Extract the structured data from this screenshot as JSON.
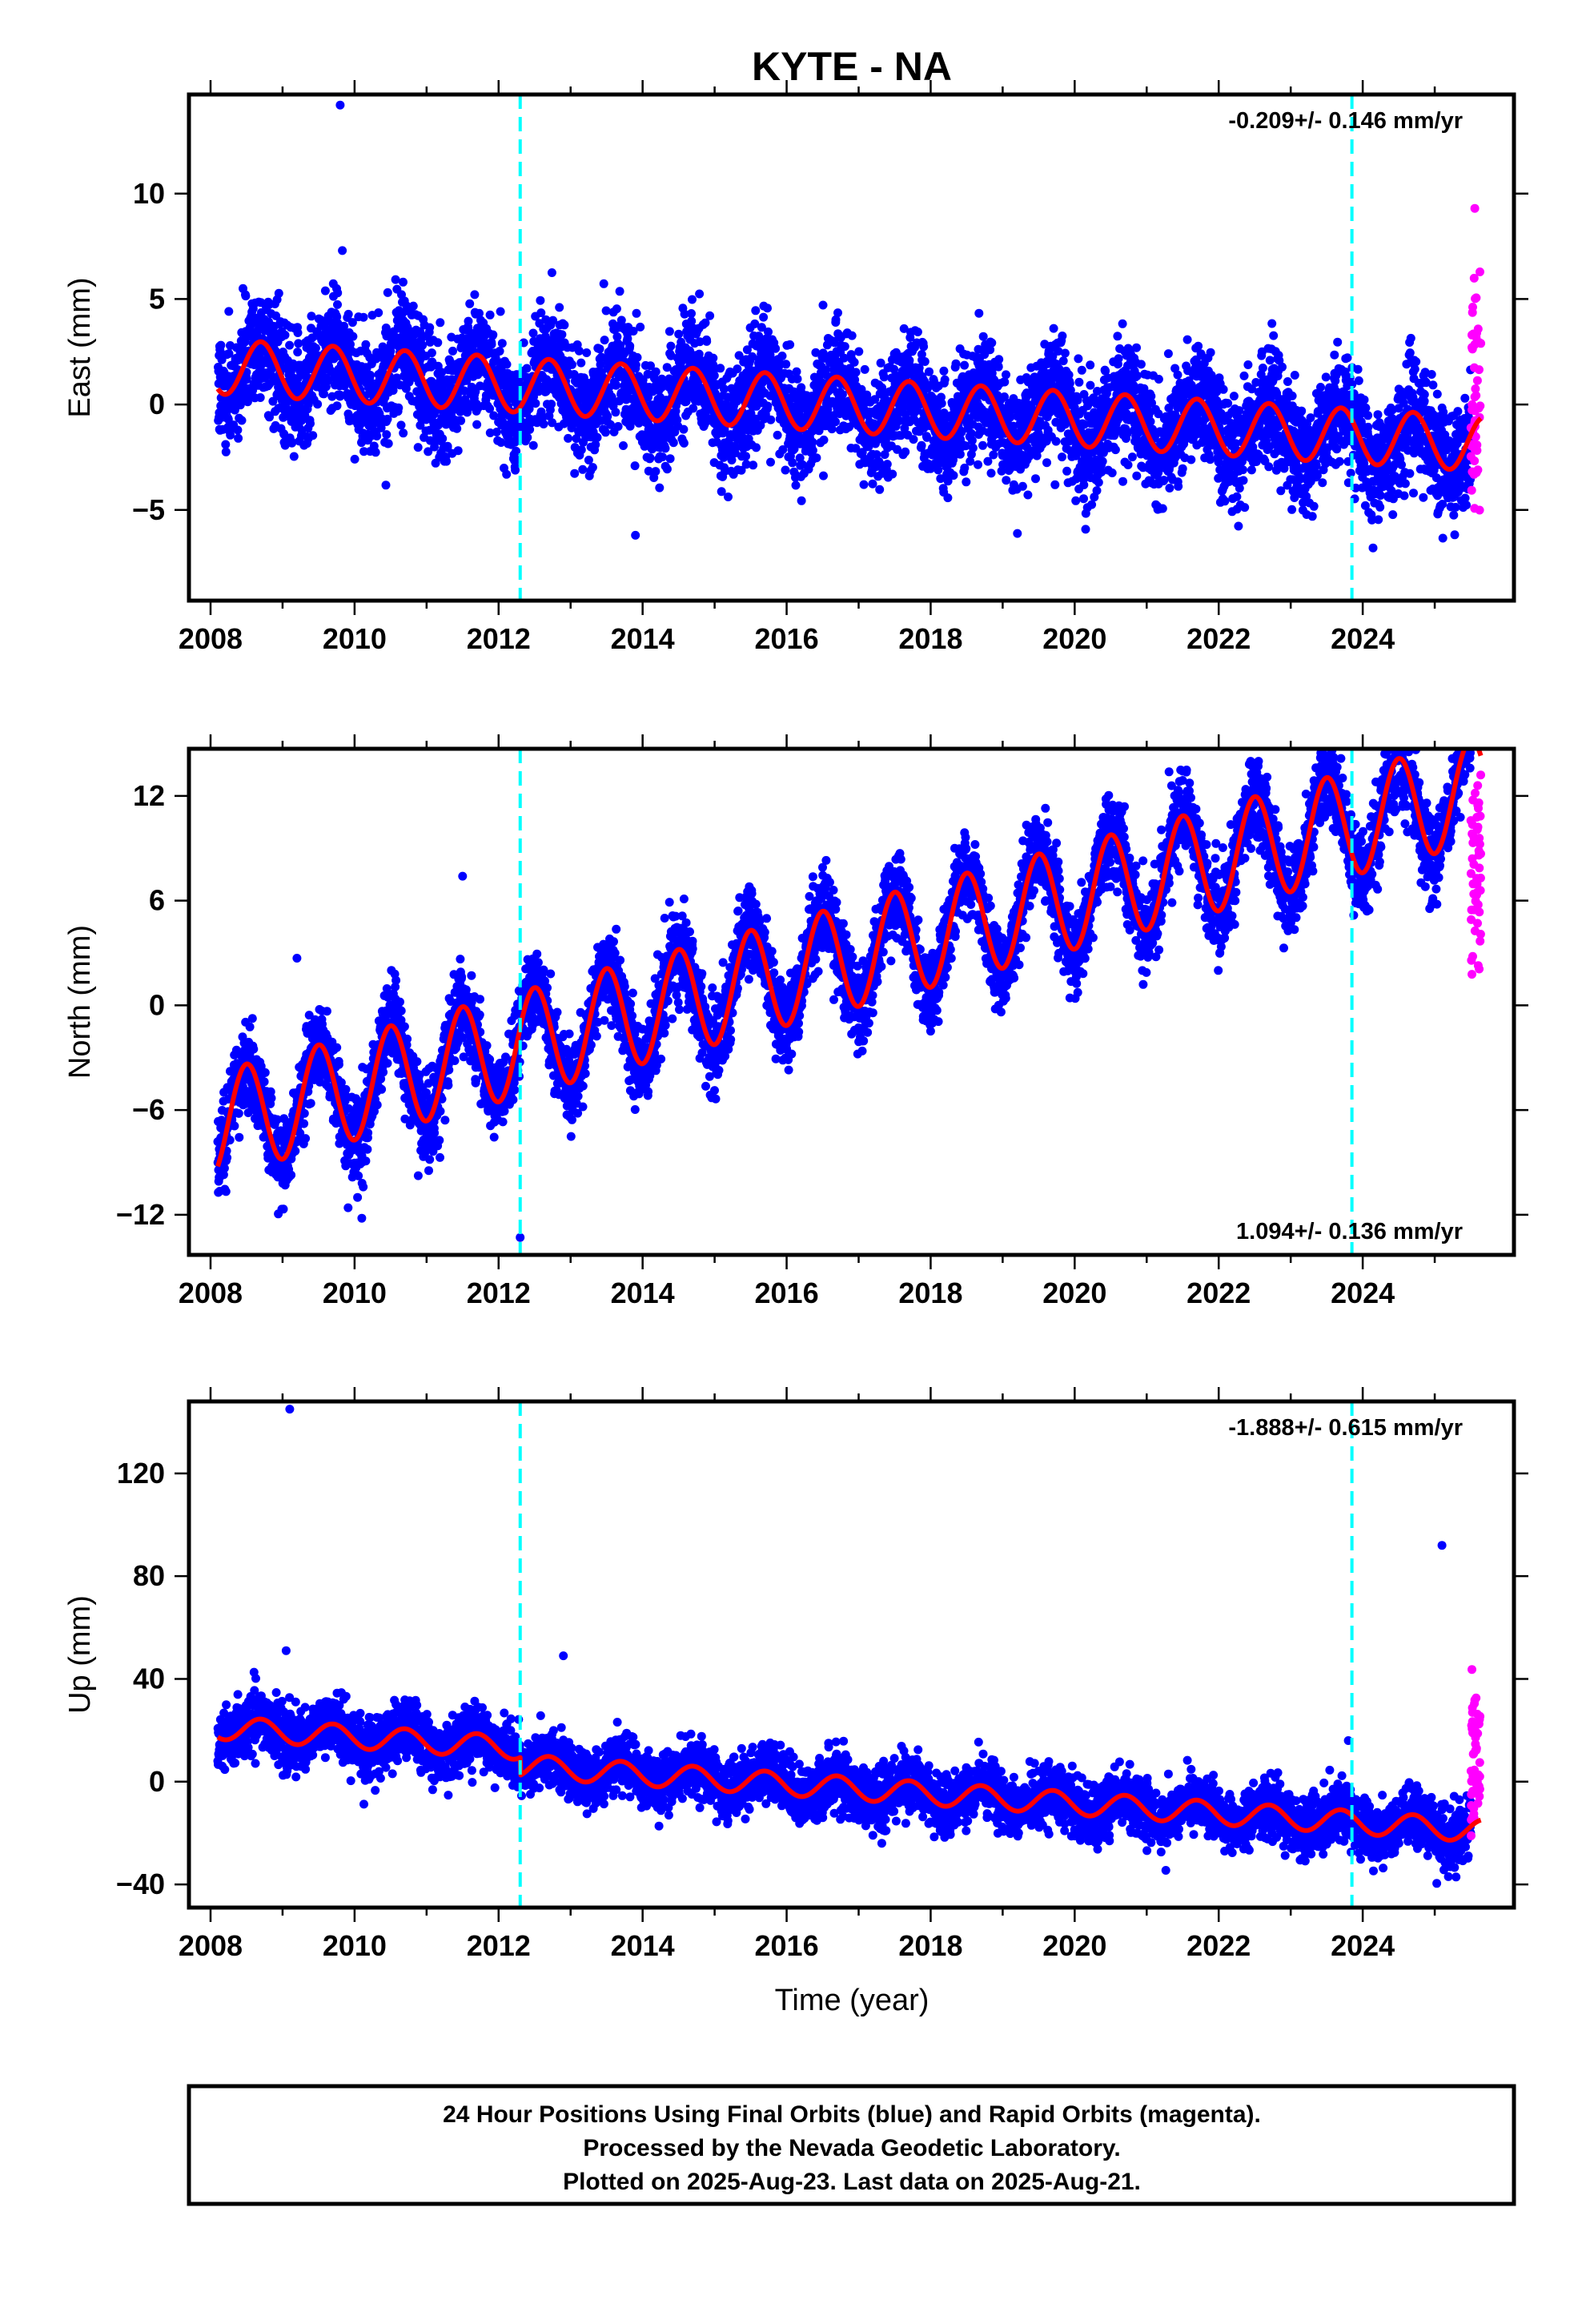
{
  "title": "KYTE - NA",
  "xlabel": "Time (year)",
  "footer": {
    "line1": "24 Hour Positions Using Final Orbits (blue) and Rapid Orbits (magenta).",
    "line2": "Processed by the Nevada Geodetic Laboratory.",
    "line3": "Plotted on 2025-Aug-23. Last data on 2025-Aug-21."
  },
  "colors": {
    "final_orbits": "#0000ff",
    "rapid_orbits": "#ff00ff",
    "model_fit": "#ff0000",
    "equipment_change": "#00ffff"
  },
  "chart_data": [
    {
      "type": "scatter",
      "panel": "east",
      "ylabel": "East (mm)",
      "rate_text": "-0.209+/- 0.146 mm/yr",
      "rate_mm_per_yr": -0.209,
      "rate_sigma": 0.146,
      "rate_position": "top-right",
      "xlim": [
        2007.7,
        2026.1
      ],
      "ylim": [
        -9.3,
        14.7
      ],
      "x_ticks": [
        2008,
        2010,
        2012,
        2014,
        2016,
        2018,
        2020,
        2022,
        2024
      ],
      "y_ticks": [
        -5,
        0,
        5,
        10
      ],
      "discontinuities": [
        2012.3,
        2023.85
      ],
      "series": [
        {
          "role": "data",
          "x_start": 2008.1,
          "x_end": 2025.5,
          "trend": -0.209,
          "offset": 1.8,
          "annual_amplitude": 1.3,
          "annual_peak": 0.7,
          "noise": 1.3
        },
        {
          "role": "rapid",
          "x_start": 2025.5,
          "x_end": 2025.64,
          "mean": 0.5,
          "noise": 3.2
        },
        {
          "role": "fit",
          "x_start": 2008.1,
          "x_end": 2025.64
        }
      ],
      "outliers": [
        [
          2009.8,
          14.2
        ],
        [
          2013.9,
          -6.2
        ],
        [
          2009.83,
          7.3
        ]
      ]
    },
    {
      "type": "scatter",
      "panel": "north",
      "ylabel": "North (mm)",
      "rate_text": "1.094+/- 0.136 mm/yr",
      "rate_mm_per_yr": 1.094,
      "rate_sigma": 0.136,
      "rate_position": "bottom-right",
      "xlim": [
        2007.7,
        2026.1
      ],
      "ylim": [
        -14.3,
        14.7
      ],
      "x_ticks": [
        2008,
        2010,
        2012,
        2014,
        2016,
        2018,
        2020,
        2022,
        2024
      ],
      "y_ticks": [
        -12,
        -6,
        0,
        6,
        12
      ],
      "discontinuities": [
        2012.3,
        2023.85
      ],
      "series": [
        {
          "role": "data",
          "x_start": 2008.1,
          "x_end": 2025.5,
          "trend": 1.094,
          "offset": -6.8,
          "annual_amplitude": 3.0,
          "annual_peak": 0.5,
          "noise": 1.2
        },
        {
          "role": "rapid",
          "x_start": 2025.5,
          "x_end": 2025.64,
          "mean": 8.0,
          "noise": 3.0
        },
        {
          "role": "fit",
          "x_start": 2008.1,
          "x_end": 2025.64
        }
      ],
      "outliers": [
        [
          2011.5,
          7.4
        ],
        [
          2009.2,
          2.7
        ],
        [
          2010.1,
          -12.2
        ],
        [
          2012.3,
          -13.3
        ]
      ]
    },
    {
      "type": "scatter",
      "panel": "up",
      "ylabel": "Up (mm)",
      "rate_text": "-1.888+/- 0.615 mm/yr",
      "rate_mm_per_yr": -1.888,
      "rate_sigma": 0.615,
      "rate_position": "top-right",
      "xlim": [
        2007.7,
        2026.1
      ],
      "ylim": [
        -49,
        148
      ],
      "x_ticks": [
        2008,
        2010,
        2012,
        2014,
        2016,
        2018,
        2020,
        2022,
        2024
      ],
      "y_ticks": [
        -40,
        0,
        40,
        80,
        120
      ],
      "discontinuities": [
        2012.3,
        2023.85
      ],
      "series": [
        {
          "role": "data",
          "x_start": 2008.1,
          "x_end": 2025.5,
          "trend": -1.888,
          "offset": 21.0,
          "annual_amplitude": 4.5,
          "annual_peak": 0.7,
          "noise": 5.5,
          "step_at": 2012.3,
          "step": -7.0
        },
        {
          "role": "rapid",
          "x_start": 2025.5,
          "x_end": 2025.64,
          "mean": 8.0,
          "noise": 13.0
        },
        {
          "role": "fit",
          "x_start": 2008.1,
          "x_end": 2025.64
        }
      ],
      "outliers": [
        [
          2009.1,
          145
        ],
        [
          2012.9,
          49
        ],
        [
          2025.1,
          92
        ],
        [
          2009.05,
          51
        ],
        [
          2023.8,
          16
        ]
      ]
    }
  ]
}
